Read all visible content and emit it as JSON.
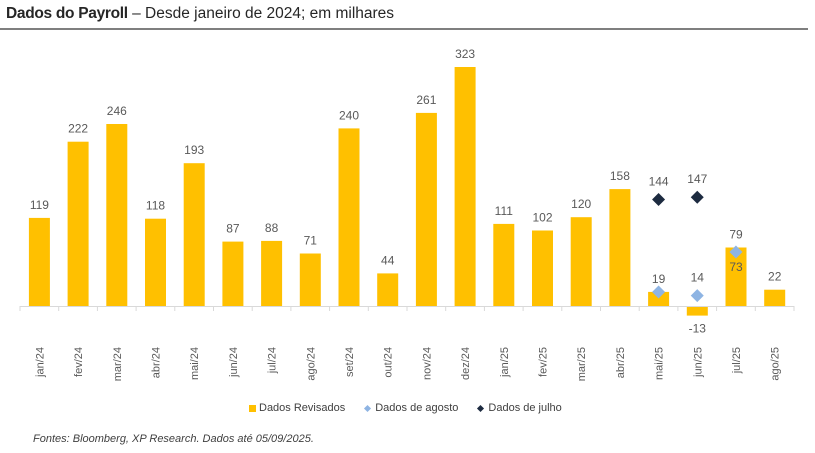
{
  "header": {
    "title_bold": "Dados do Payroll",
    "title_rest": " – Desde janeiro de 2024; em milhares"
  },
  "colors": {
    "revisados": "#FFC000",
    "agosto": "#8EB4E3",
    "julho": "#1D2B40",
    "axis": "#D9D9D9",
    "label": "#595959"
  },
  "chart_data": {
    "type": "bar",
    "title": "Dados do Payroll – Desde janeiro de 2024; em milhares",
    "xlabel": "",
    "ylabel": "",
    "ylim": [
      -20,
      330
    ],
    "grid": false,
    "legend_position": "bottom",
    "categories": [
      "jan/24",
      "fev/24",
      "mar/24",
      "abr/24",
      "mai/24",
      "jun/24",
      "jul/24",
      "ago/24",
      "set/24",
      "out/24",
      "nov/24",
      "dez/24",
      "jan/25",
      "fev/25",
      "mar/25",
      "abr/25",
      "mai/25",
      "jun/25",
      "jul/25",
      "ago/25"
    ],
    "series": [
      {
        "name": "Dados Revisados",
        "kind": "bar",
        "values": [
          119,
          222,
          246,
          118,
          193,
          87,
          88,
          71,
          240,
          44,
          261,
          323,
          111,
          102,
          120,
          158,
          19,
          -13,
          79,
          22
        ]
      },
      {
        "name": "Dados de agosto",
        "kind": "marker",
        "values": [
          null,
          null,
          null,
          null,
          null,
          null,
          null,
          null,
          null,
          null,
          null,
          null,
          null,
          null,
          null,
          null,
          19,
          14,
          73,
          null
        ]
      },
      {
        "name": "Dados de julho",
        "kind": "marker",
        "values": [
          null,
          null,
          null,
          null,
          null,
          null,
          null,
          null,
          null,
          null,
          null,
          null,
          null,
          null,
          null,
          null,
          144,
          147,
          null,
          null
        ]
      }
    ]
  },
  "legend": {
    "items": [
      "Dados Revisados",
      "Dados de agosto",
      "Dados de julho"
    ]
  },
  "footer": {
    "source": "Fontes: Bloomberg, XP Research. Dados até 05/09/2025."
  }
}
